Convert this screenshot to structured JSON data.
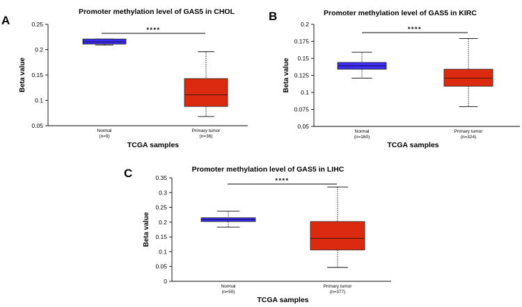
{
  "figure": {
    "panel_labels": [
      "A",
      "B",
      "C"
    ]
  },
  "colors": {
    "normal": "#3d2ff2",
    "normal_median": "#1a1060",
    "tumor": "#dc2a10",
    "tumor_median": "#5a1a0c"
  },
  "chart_data": [
    {
      "type": "box",
      "panel": "A",
      "title": "Promoter methylation level of GAS5 in CHOL",
      "xlabel": "TCGA samples",
      "ylabel": "Beta value",
      "ylim": [
        0.05,
        0.25
      ],
      "yticks": [
        "0.25",
        "0.2",
        "0.15",
        "0.1",
        "0.05"
      ],
      "ytick_values": [
        0.25,
        0.2,
        0.15,
        0.1,
        0.05
      ],
      "significance": "****",
      "series": [
        {
          "name": "Normal",
          "n_label": "(n=9)",
          "min": 0.209,
          "q1": 0.211,
          "median": 0.2155,
          "q3": 0.221,
          "max": 0.221
        },
        {
          "name": "Primary tumor",
          "n_label": "(n=36)",
          "min": 0.068,
          "q1": 0.088,
          "median": 0.111,
          "q3": 0.143,
          "max": 0.196
        }
      ]
    },
    {
      "type": "box",
      "panel": "B",
      "title": "Promoter methylation level of GAS5 in KIRC",
      "xlabel": "TCGA samples",
      "ylabel": "Beta value",
      "ylim": [
        0.05,
        0.2
      ],
      "yticks": [
        "0.2",
        "0.175",
        "0.15",
        "0.125",
        "0.1",
        "0.075",
        "0.05"
      ],
      "ytick_values": [
        0.2,
        0.175,
        0.15,
        0.125,
        0.1,
        0.075,
        0.05
      ],
      "significance": "****",
      "series": [
        {
          "name": "Normal",
          "n_label": "(n=160)",
          "min": 0.121,
          "q1": 0.134,
          "median": 0.139,
          "q3": 0.144,
          "max": 0.159
        },
        {
          "name": "Primary tumor",
          "n_label": "(n=324)",
          "min": 0.079,
          "q1": 0.109,
          "median": 0.121,
          "q3": 0.134,
          "max": 0.179
        }
      ]
    },
    {
      "type": "box",
      "panel": "C",
      "title": "Promoter methylation level of GAS5 in LIHC",
      "xlabel": "TCGA samples",
      "ylabel": "Beta value",
      "ylim": [
        0,
        0.35
      ],
      "yticks": [
        "0.35",
        "0.3",
        "0.25",
        "0.2",
        "0.15",
        "0.1",
        "0.05",
        "0"
      ],
      "ytick_values": [
        0.35,
        0.3,
        0.25,
        0.2,
        0.15,
        0.1,
        0.05,
        0
      ],
      "significance": "****",
      "series": [
        {
          "name": "Normal",
          "n_label": "(n=50)",
          "min": 0.183,
          "q1": 0.202,
          "median": 0.208,
          "q3": 0.215,
          "max": 0.237
        },
        {
          "name": "Primary tumor",
          "n_label": "(n=377)",
          "min": 0.047,
          "q1": 0.106,
          "median": 0.145,
          "q3": 0.202,
          "max": 0.319
        }
      ]
    }
  ]
}
